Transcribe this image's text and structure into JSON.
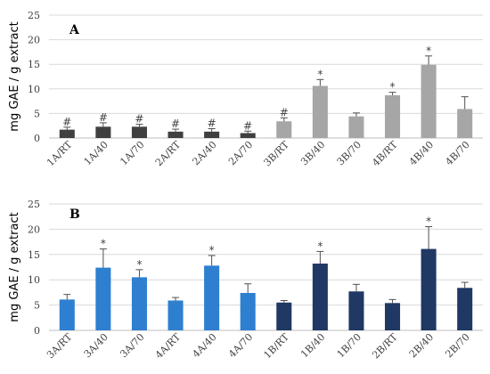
{
  "colors": {
    "dark_gray": "#404040",
    "light_gray": "#a6a6a6",
    "light_blue": "#2f7fd0",
    "dark_blue": "#1f3864"
  },
  "chart_data": [
    {
      "type": "bar",
      "panel_label": "A",
      "ylabel": "mg GAE / g extract",
      "ylim": [
        0,
        25
      ],
      "yticks": [
        0,
        5,
        10,
        15,
        20,
        25
      ],
      "grid": true,
      "categories": [
        "1A/RT",
        "1A/40",
        "1A/70",
        "2A/RT",
        "2A/40",
        "2A/70",
        "3B/RT",
        "3B/40",
        "3B/70",
        "4B/RT",
        "4B/40",
        "4B/70"
      ],
      "values": [
        1.7,
        2.3,
        2.3,
        1.3,
        1.3,
        1.0,
        3.4,
        10.6,
        4.4,
        8.7,
        14.9,
        5.9
      ],
      "errors": [
        0.5,
        0.8,
        0.5,
        0.5,
        0.6,
        0.4,
        0.7,
        1.3,
        0.7,
        0.6,
        1.8,
        2.5
      ],
      "markers": [
        "#",
        "#",
        "#",
        "#",
        "#",
        "#",
        "#",
        "*",
        "",
        "*",
        "*",
        ""
      ],
      "bar_colors": [
        "dark_gray",
        "dark_gray",
        "dark_gray",
        "dark_gray",
        "dark_gray",
        "dark_gray",
        "light_gray",
        "light_gray",
        "light_gray",
        "light_gray",
        "light_gray",
        "light_gray"
      ]
    },
    {
      "type": "bar",
      "panel_label": "B",
      "ylabel": "mg GAE / g extract",
      "ylim": [
        0,
        25
      ],
      "yticks": [
        0,
        5,
        10,
        15,
        20,
        25
      ],
      "grid": true,
      "categories": [
        "3A/RT",
        "3A/40",
        "3A/70",
        "4A/RT",
        "4A/40",
        "4A/70",
        "1B/RT",
        "1B/40",
        "1B/70",
        "2B/RT",
        "2B/40",
        "2B/70"
      ],
      "values": [
        6.1,
        12.4,
        10.5,
        5.9,
        12.8,
        7.4,
        5.5,
        13.2,
        7.7,
        5.4,
        16.1,
        8.4
      ],
      "errors": [
        1.0,
        3.7,
        1.5,
        0.6,
        2.0,
        1.8,
        0.4,
        2.4,
        1.4,
        0.7,
        4.4,
        1.1
      ],
      "markers": [
        "",
        "*",
        "*",
        "",
        "*",
        "",
        "",
        "*",
        "",
        "",
        "*",
        ""
      ],
      "bar_colors": [
        "light_blue",
        "light_blue",
        "light_blue",
        "light_blue",
        "light_blue",
        "light_blue",
        "dark_blue",
        "dark_blue",
        "dark_blue",
        "dark_blue",
        "dark_blue",
        "dark_blue"
      ]
    }
  ]
}
